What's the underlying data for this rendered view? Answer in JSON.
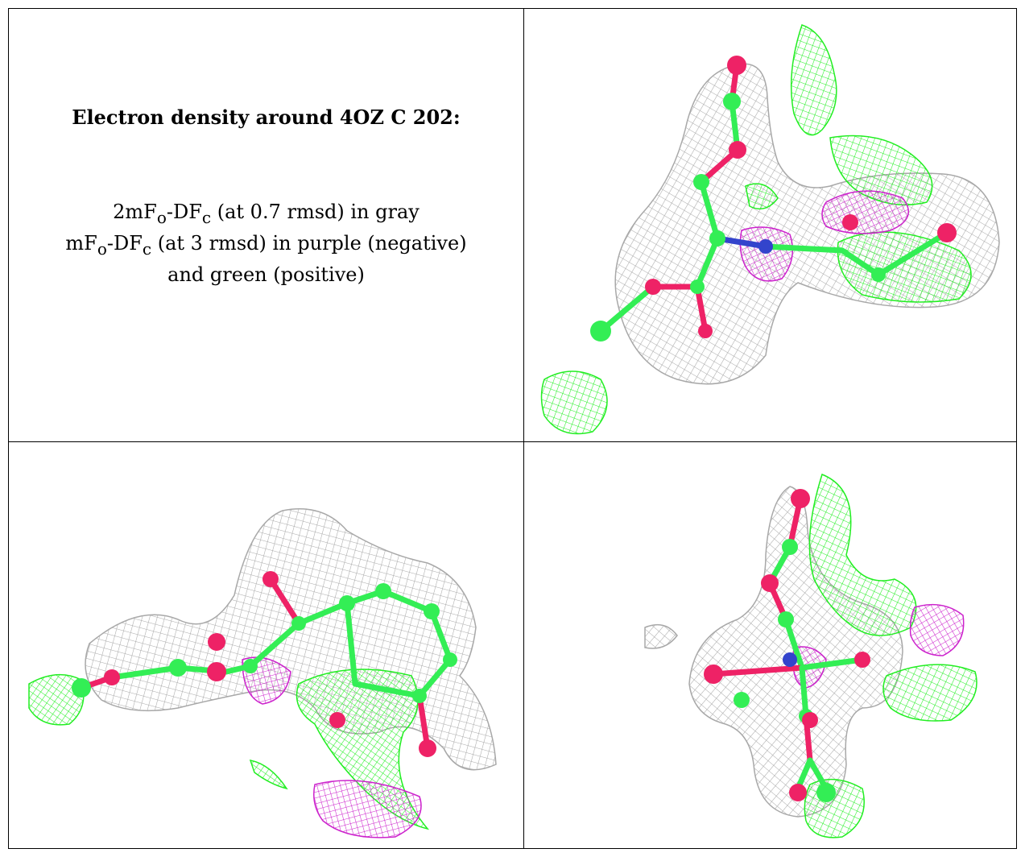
{
  "title": "Electron density around 4OZ C 202:",
  "legend": {
    "line1": {
      "pre": "2mF",
      "sub1": "o",
      "mid": "-DF",
      "sub2": "c",
      "post": " (at 0.7 rmsd) in gray"
    },
    "line2": {
      "pre": "mF",
      "sub1": "o",
      "mid": "-DF",
      "sub2": "c",
      "post": " (at 3 rmsd) in purple (negative)"
    },
    "line3": "and green (positive)"
  },
  "colors": {
    "density_2fofc": "#a8a8a8",
    "density_positive": "#22ee22",
    "density_negative": "#cc22cc",
    "carbon": "#33ee55",
    "oxygen": "#ee2266",
    "nitrogen": "#3344cc"
  }
}
